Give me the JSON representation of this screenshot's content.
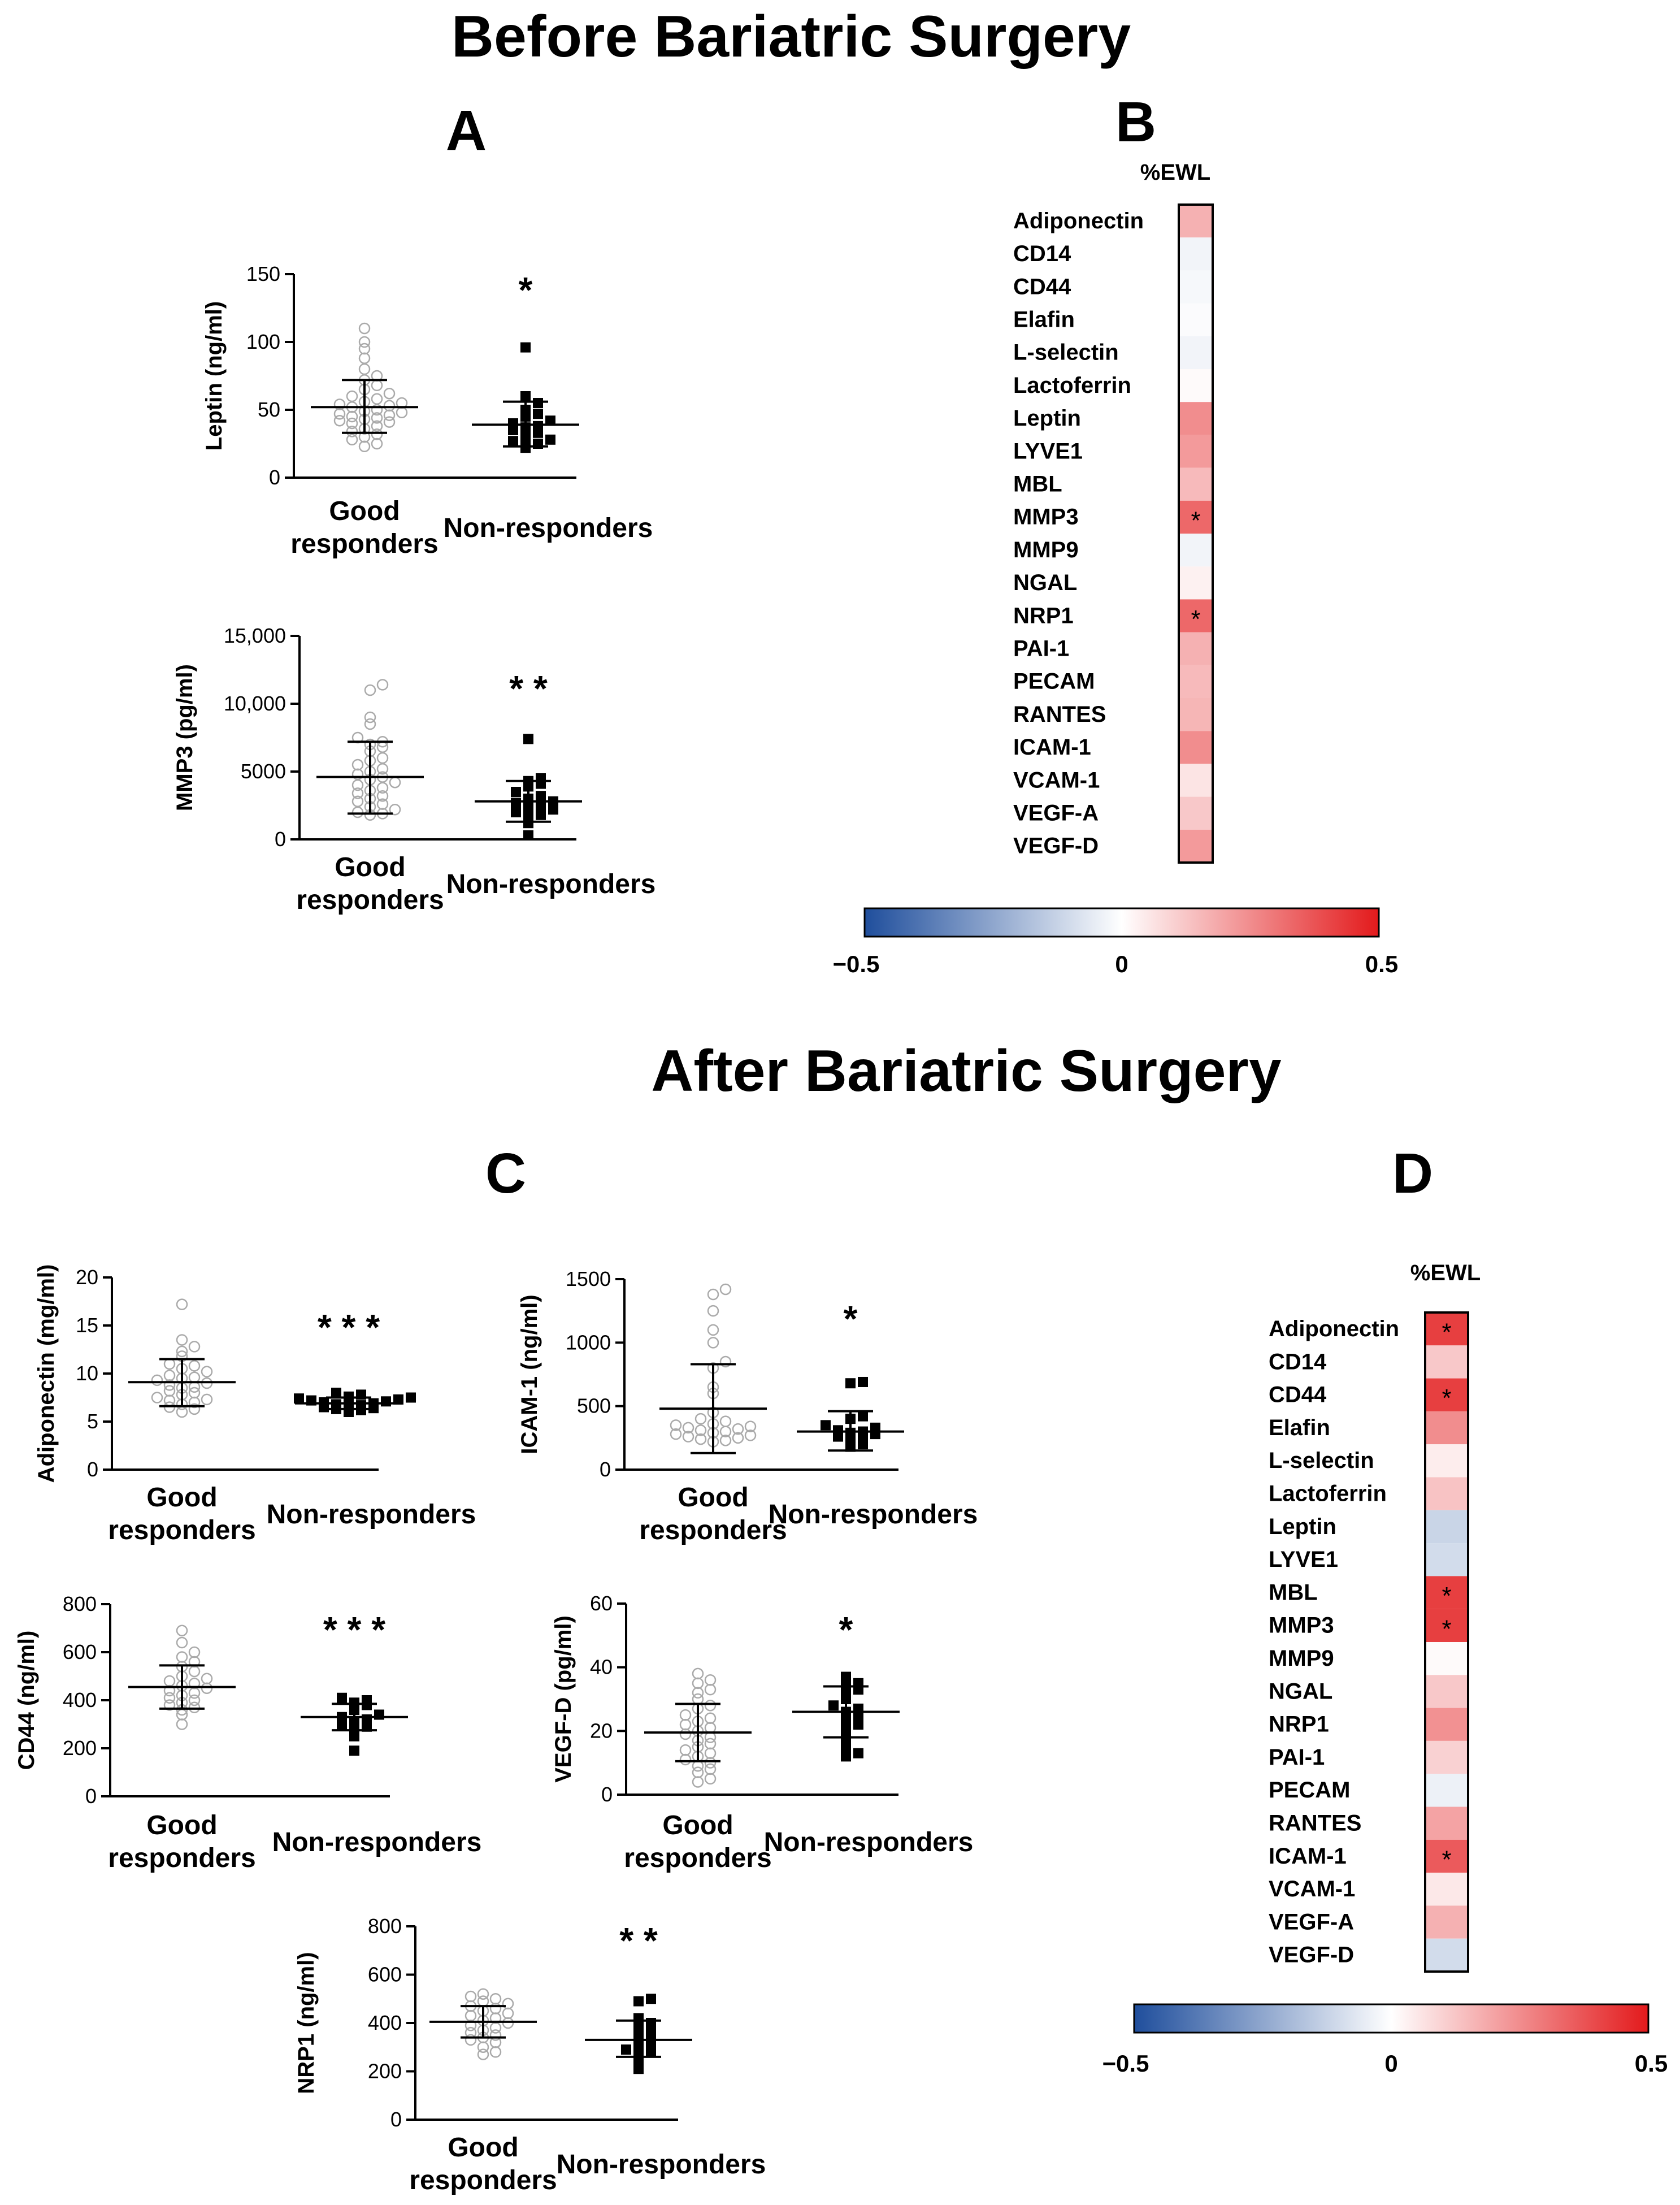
{
  "figure": {
    "before_title": "Before Bariatric Surgery",
    "after_title": "After Bariatric Surgery"
  },
  "colors": {
    "good": "#aaaaaa",
    "non": "#000000",
    "cmap_neg": "#1f4e9c",
    "cmap_mid": "#ffffff",
    "cmap_pos": "#e31a1c"
  },
  "chart_data": [
    {
      "id": "A",
      "panel": "A",
      "type": "scatter",
      "subtype": "dot-plot",
      "ylabel": "Leptin (ng/ml)",
      "ylim": [
        0,
        150
      ],
      "yticks": [
        0,
        50,
        100,
        150
      ],
      "ytick_labels": [
        "0",
        "50",
        "100",
        "150"
      ],
      "categories": [
        "Good\nresponders",
        "Non-responders"
      ],
      "significance": "*",
      "groups": [
        {
          "name": "Good responders",
          "marker": "open-circle",
          "mean": 52,
          "sd_low": 33,
          "sd_high": 72,
          "values": [
            110,
            100,
            95,
            88,
            80,
            75,
            72,
            68,
            65,
            62,
            60,
            58,
            56,
            55,
            54,
            53,
            52,
            50,
            49,
            48,
            47,
            46,
            45,
            44,
            43,
            42,
            41,
            40,
            38,
            36,
            34,
            32,
            30,
            28,
            25,
            23
          ]
        },
        {
          "name": "Non-responders",
          "marker": "filled-square",
          "mean": 39,
          "sd_low": 23,
          "sd_high": 56,
          "values": [
            96,
            60,
            55,
            50,
            47,
            45,
            42,
            40,
            38,
            37,
            35,
            33,
            30,
            28,
            27,
            25,
            23,
            22
          ]
        }
      ]
    },
    {
      "id": "A2",
      "panel": "A",
      "type": "scatter",
      "subtype": "dot-plot",
      "ylabel": "MMP3 (pg/ml)",
      "ylim": [
        0,
        15000
      ],
      "yticks": [
        0,
        5000,
        10000,
        15000
      ],
      "ytick_labels": [
        "0",
        "5000",
        "10,000",
        "15,000"
      ],
      "categories": [
        "Good\nresponders",
        "Non-responders"
      ],
      "significance": "* *",
      "groups": [
        {
          "name": "Good responders",
          "marker": "open-circle",
          "mean": 4600,
          "sd_low": 1900,
          "sd_high": 7200,
          "values": [
            11400,
            11000,
            9000,
            8500,
            7500,
            7200,
            7000,
            6800,
            6500,
            6000,
            5800,
            5500,
            5200,
            5000,
            4800,
            4600,
            4400,
            4200,
            4000,
            3800,
            3600,
            3400,
            3200,
            3000,
            2800,
            2600,
            2400,
            2200,
            2000,
            1900,
            1800
          ]
        },
        {
          "name": "Non-responders",
          "marker": "filled-square",
          "mean": 2800,
          "sd_low": 1300,
          "sd_high": 4300,
          "values": [
            7400,
            4500,
            4300,
            4100,
            3900,
            3500,
            3200,
            3000,
            2800,
            2700,
            2500,
            2300,
            2200,
            2000,
            1800,
            1600,
            1200,
            300
          ]
        }
      ]
    },
    {
      "id": "B",
      "panel": "B",
      "type": "heatmap",
      "column": "%EWL",
      "vmin": -0.5,
      "vmax": 0.5,
      "colorbar_ticks": [
        "−0.5",
        "0",
        "0.5"
      ],
      "rows": [
        {
          "label": "Adiponectin",
          "value": 0.17
        },
        {
          "label": "CD14",
          "value": -0.03
        },
        {
          "label": "CD44",
          "value": -0.02
        },
        {
          "label": "Elafin",
          "value": -0.01
        },
        {
          "label": "L-selectin",
          "value": -0.03
        },
        {
          "label": "Lactoferrin",
          "value": 0.01
        },
        {
          "label": "Leptin",
          "value": 0.25
        },
        {
          "label": "LYVE1",
          "value": 0.22
        },
        {
          "label": "MBL",
          "value": 0.15
        },
        {
          "label": "MMP3",
          "value": 0.33,
          "star": "*"
        },
        {
          "label": "MMP9",
          "value": -0.03
        },
        {
          "label": "NGAL",
          "value": 0.03
        },
        {
          "label": "NRP1",
          "value": 0.33,
          "star": "*"
        },
        {
          "label": "PAI-1",
          "value": 0.17
        },
        {
          "label": "PECAM",
          "value": 0.15
        },
        {
          "label": "RANTES",
          "value": 0.16
        },
        {
          "label": "ICAM-1",
          "value": 0.25
        },
        {
          "label": "VCAM-1",
          "value": 0.06
        },
        {
          "label": "VEGF-A",
          "value": 0.12
        },
        {
          "label": "VEGF-D",
          "value": 0.22
        }
      ]
    },
    {
      "id": "C1",
      "panel": "C",
      "type": "scatter",
      "subtype": "dot-plot",
      "ylabel": "Adiponectin (mg/ml)",
      "ylim": [
        0,
        20
      ],
      "yticks": [
        0,
        5,
        10,
        15,
        20
      ],
      "ytick_labels": [
        "0",
        "5",
        "10",
        "15",
        "20"
      ],
      "categories": [
        "Good\nresponders",
        "Non-responders"
      ],
      "significance": "* * *",
      "groups": [
        {
          "name": "Good responders",
          "marker": "open-circle",
          "mean": 9.1,
          "sd_low": 6.6,
          "sd_high": 11.5,
          "values": [
            17.2,
            13.5,
            12.8,
            12.3,
            11.8,
            11.0,
            10.5,
            10.2,
            9.8,
            9.5,
            9.3,
            9.0,
            8.8,
            8.5,
            8.2,
            8.0,
            7.8,
            7.5,
            7.3,
            7.0,
            6.8,
            6.5,
            6.3,
            6.0,
            8.6,
            9.6,
            10.8,
            7.2
          ]
        },
        {
          "name": "Non-responders",
          "marker": "filled-square",
          "mean": 6.9,
          "sd_low": 6.3,
          "sd_high": 7.5,
          "values": [
            8.0,
            7.8,
            7.6,
            7.5,
            7.4,
            7.3,
            7.2,
            7.1,
            7.0,
            6.9,
            6.8,
            6.7,
            6.6,
            6.5,
            6.4,
            6.3,
            6.2,
            6.0
          ]
        }
      ]
    },
    {
      "id": "C2",
      "panel": "C",
      "type": "scatter",
      "subtype": "dot-plot",
      "ylabel": "ICAM-1 (ng/ml)",
      "ylim": [
        0,
        1500
      ],
      "yticks": [
        0,
        500,
        1000,
        1500
      ],
      "ytick_labels": [
        "0",
        "500",
        "1000",
        "1500"
      ],
      "categories": [
        "Good\nresponders",
        "Non-responders"
      ],
      "significance": "*",
      "groups": [
        {
          "name": "Good responders",
          "marker": "open-circle",
          "mean": 480,
          "sd_low": 130,
          "sd_high": 830,
          "values": [
            1420,
            1380,
            1250,
            1100,
            1000,
            850,
            800,
            650,
            600,
            450,
            400,
            380,
            360,
            350,
            340,
            330,
            320,
            310,
            300,
            290,
            280,
            270,
            260,
            250,
            240,
            230,
            220
          ]
        },
        {
          "name": "Non-responders",
          "marker": "filled-square",
          "mean": 300,
          "sd_low": 150,
          "sd_high": 460,
          "values": [
            690,
            680,
            420,
            400,
            350,
            330,
            310,
            300,
            290,
            280,
            260,
            240,
            220,
            200,
            180
          ]
        }
      ]
    },
    {
      "id": "C3",
      "panel": "C",
      "type": "scatter",
      "subtype": "dot-plot",
      "ylabel": "CD44 (ng/ml)",
      "ylim": [
        0,
        800
      ],
      "yticks": [
        0,
        200,
        400,
        600,
        800
      ],
      "ytick_labels": [
        "0",
        "200",
        "400",
        "600",
        "800"
      ],
      "categories": [
        "Good\nresponders",
        "Non-responders"
      ],
      "significance": "* * *",
      "groups": [
        {
          "name": "Good responders",
          "marker": "open-circle",
          "mean": 455,
          "sd_low": 365,
          "sd_high": 545,
          "values": [
            690,
            640,
            600,
            580,
            560,
            540,
            520,
            500,
            490,
            480,
            470,
            460,
            450,
            440,
            430,
            420,
            410,
            400,
            390,
            380,
            370,
            360,
            340,
            300
          ]
        },
        {
          "name": "Non-responders",
          "marker": "filled-square",
          "mean": 330,
          "sd_low": 275,
          "sd_high": 385,
          "values": [
            410,
            400,
            390,
            380,
            360,
            340,
            330,
            320,
            310,
            300,
            290,
            270,
            250,
            190
          ]
        }
      ]
    },
    {
      "id": "C4",
      "panel": "C",
      "type": "scatter",
      "subtype": "dot-plot",
      "ylabel": "VEGF-D (pg/ml)",
      "ylim": [
        0,
        60
      ],
      "yticks": [
        0,
        20,
        40,
        60
      ],
      "ytick_labels": [
        "0",
        "20",
        "40",
        "60"
      ],
      "categories": [
        "Good\nresponders",
        "Non-responders"
      ],
      "significance": "*",
      "groups": [
        {
          "name": "Good responders",
          "marker": "open-circle",
          "mean": 19.5,
          "sd_low": 10.5,
          "sd_high": 28.5,
          "values": [
            38,
            36,
            35,
            33,
            32,
            30,
            28,
            27,
            25,
            24,
            23,
            22,
            21,
            20,
            19,
            18,
            17,
            16,
            15,
            14,
            13,
            12,
            11,
            10,
            9,
            8,
            7,
            5,
            4
          ]
        },
        {
          "name": "Non-responders",
          "marker": "filled-square",
          "mean": 26,
          "sd_low": 18,
          "sd_high": 34,
          "values": [
            37,
            35,
            34,
            33,
            32,
            30,
            28,
            27,
            26,
            25,
            23,
            22,
            20,
            18,
            15,
            13,
            12
          ]
        }
      ]
    },
    {
      "id": "C5",
      "panel": "C",
      "type": "scatter",
      "subtype": "dot-plot",
      "ylabel": "NRP1 (ng/ml)",
      "ylim": [
        0,
        800
      ],
      "yticks": [
        0,
        200,
        400,
        600,
        800
      ],
      "ytick_labels": [
        "0",
        "200",
        "400",
        "600",
        "800"
      ],
      "categories": [
        "Good\nresponders",
        "Non-responders"
      ],
      "significance": "* *",
      "groups": [
        {
          "name": "Good responders",
          "marker": "open-circle",
          "mean": 405,
          "sd_low": 340,
          "sd_high": 470,
          "values": [
            520,
            510,
            500,
            490,
            480,
            470,
            460,
            450,
            440,
            430,
            420,
            410,
            400,
            390,
            380,
            370,
            360,
            350,
            340,
            330,
            320,
            300,
            280,
            270
          ]
        },
        {
          "name": "Non-responders",
          "marker": "filled-square",
          "mean": 330,
          "sd_low": 260,
          "sd_high": 410,
          "values": [
            500,
            490,
            420,
            400,
            380,
            360,
            340,
            320,
            300,
            290,
            280,
            260,
            240,
            210
          ]
        }
      ]
    },
    {
      "id": "D",
      "panel": "D",
      "type": "heatmap",
      "column": "%EWL",
      "vmin": -0.5,
      "vmax": 0.5,
      "colorbar_ticks": [
        "−0.5",
        "0",
        "0.5"
      ],
      "rows": [
        {
          "label": "Adiponectin",
          "value": 0.42,
          "star": "*"
        },
        {
          "label": "CD14",
          "value": 0.12
        },
        {
          "label": "CD44",
          "value": 0.42,
          "star": "*"
        },
        {
          "label": "Elafin",
          "value": 0.25
        },
        {
          "label": "L-selectin",
          "value": 0.04
        },
        {
          "label": "Lactoferrin",
          "value": 0.13
        },
        {
          "label": "Leptin",
          "value": -0.12
        },
        {
          "label": "LYVE1",
          "value": -0.1
        },
        {
          "label": "MBL",
          "value": 0.42,
          "star": "*"
        },
        {
          "label": "MMP3",
          "value": 0.42,
          "star": "*"
        },
        {
          "label": "MMP9",
          "value": 0.01
        },
        {
          "label": "NGAL",
          "value": 0.12
        },
        {
          "label": "NRP1",
          "value": 0.24
        },
        {
          "label": "PAI-1",
          "value": 0.1
        },
        {
          "label": "PECAM",
          "value": -0.04
        },
        {
          "label": "RANTES",
          "value": 0.2
        },
        {
          "label": "ICAM-1",
          "value": 0.36,
          "star": "*"
        },
        {
          "label": "VCAM-1",
          "value": 0.05
        },
        {
          "label": "VEGF-A",
          "value": 0.17
        },
        {
          "label": "VEGF-D",
          "value": -0.1
        }
      ]
    }
  ]
}
